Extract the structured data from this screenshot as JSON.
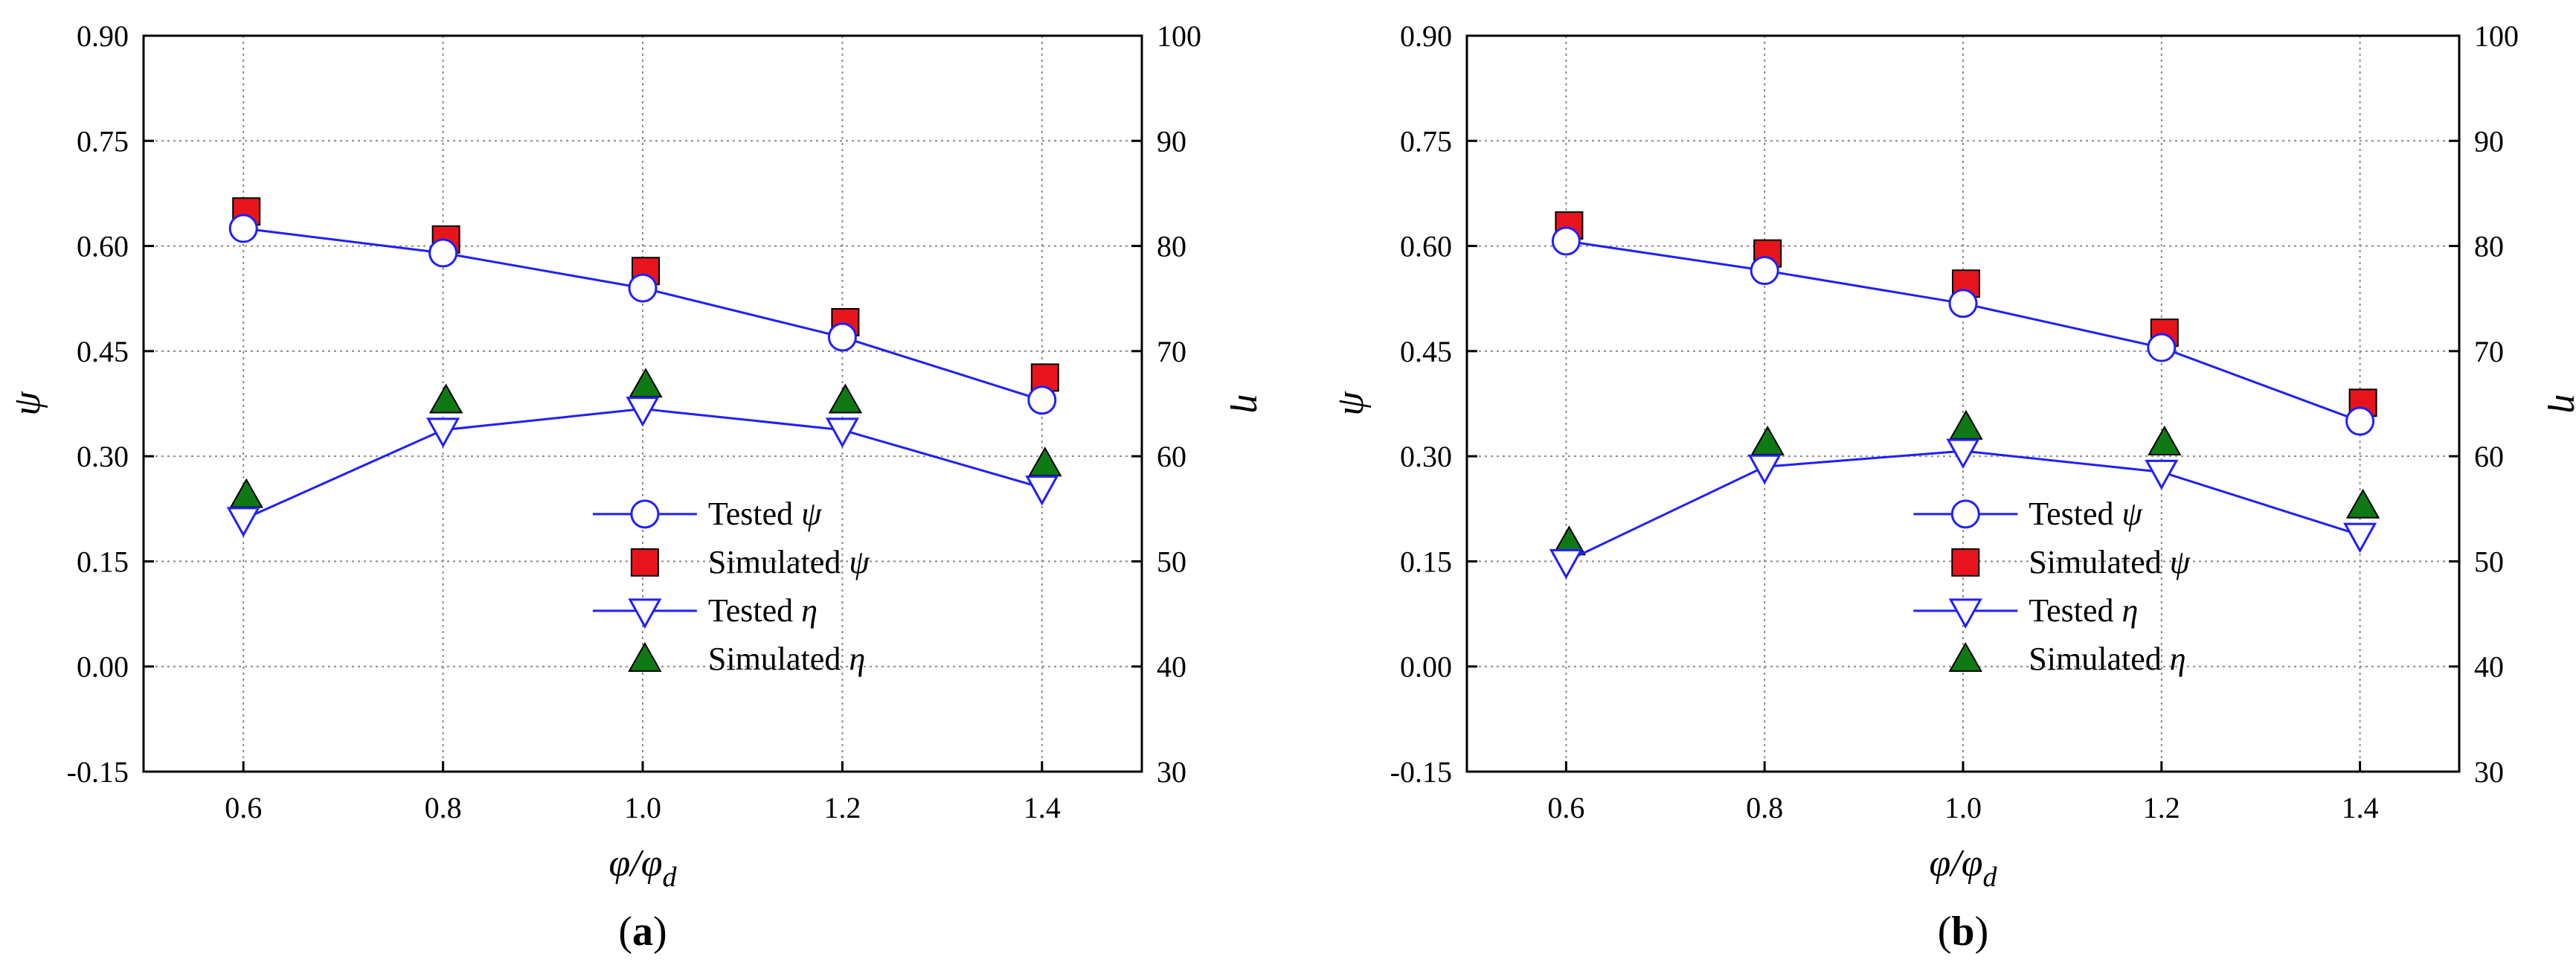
{
  "chart_data": [
    {
      "panel_label": "a",
      "type": "line",
      "x": [
        0.6,
        0.8,
        1.0,
        1.2,
        1.4
      ],
      "xlim": [
        0.5,
        1.5
      ],
      "xticks": [
        "0.6",
        "0.8",
        "1.0",
        "1.2",
        "1.4"
      ],
      "xlabel": {
        "main": "φ/φ",
        "sub": "d"
      },
      "ylabel_left": "ψ",
      "ylabel_right": "η",
      "ylim_left": [
        -0.15,
        0.9
      ],
      "ylim_right": [
        30,
        100
      ],
      "yticks_left": [
        "-0.15",
        "0.00",
        "0.15",
        "0.30",
        "0.45",
        "0.60",
        "0.75",
        "0.90"
      ],
      "yticks_right": [
        "30",
        "40",
        "50",
        "60",
        "70",
        "80",
        "90",
        "100"
      ],
      "grid": true,
      "legend_position": "center-right",
      "series": [
        {
          "name": "Tested ψ",
          "label": "Tested",
          "symbol": "ψ",
          "axis": "left",
          "marker": "circle",
          "line": true,
          "color": "#1f1fff",
          "fill": "#ffffff",
          "values": [
            0.625,
            0.59,
            0.54,
            0.47,
            0.38
          ]
        },
        {
          "name": "Simulated ψ",
          "label": "Simulated",
          "symbol": "ψ",
          "axis": "left",
          "marker": "square",
          "line": false,
          "color": "#000000",
          "fill": "#e8141c",
          "values": [
            0.645,
            0.605,
            0.56,
            0.487,
            0.408
          ]
        },
        {
          "name": "Tested η",
          "label": "Tested",
          "symbol": "η",
          "axis": "right",
          "marker": "triangle-down",
          "line": true,
          "color": "#1f1fff",
          "fill": "#ffffff",
          "values": [
            54.0,
            62.5,
            64.5,
            62.5,
            57.0
          ]
        },
        {
          "name": "Simulated η",
          "label": "Simulated",
          "symbol": "η",
          "axis": "right",
          "marker": "triangle-up",
          "line": false,
          "color": "#000000",
          "fill": "#0f7a14",
          "values": [
            56.0,
            65.0,
            66.5,
            65.0,
            59.0
          ]
        }
      ]
    },
    {
      "panel_label": "b",
      "type": "line",
      "x": [
        0.6,
        0.8,
        1.0,
        1.2,
        1.4
      ],
      "xlim": [
        0.5,
        1.5
      ],
      "xticks": [
        "0.6",
        "0.8",
        "1.0",
        "1.2",
        "1.4"
      ],
      "xlabel": {
        "main": "φ/φ",
        "sub": "d"
      },
      "ylabel_left": "ψ",
      "ylabel_right": "η",
      "ylim_left": [
        -0.15,
        0.9
      ],
      "ylim_right": [
        30,
        100
      ],
      "yticks_left": [
        "-0.15",
        "0.00",
        "0.15",
        "0.30",
        "0.45",
        "0.60",
        "0.75",
        "0.90"
      ],
      "yticks_right": [
        "30",
        "40",
        "50",
        "60",
        "70",
        "80",
        "90",
        "100"
      ],
      "grid": true,
      "legend_position": "center-right",
      "series": [
        {
          "name": "Tested ψ",
          "label": "Tested",
          "symbol": "ψ",
          "axis": "left",
          "marker": "circle",
          "line": true,
          "color": "#1f1fff",
          "fill": "#ffffff",
          "values": [
            0.607,
            0.565,
            0.518,
            0.455,
            0.35
          ]
        },
        {
          "name": "Simulated ψ",
          "label": "Simulated",
          "symbol": "ψ",
          "axis": "left",
          "marker": "square",
          "line": false,
          "color": "#000000",
          "fill": "#e8141c",
          "values": [
            0.625,
            0.585,
            0.542,
            0.472,
            0.372
          ]
        },
        {
          "name": "Tested η",
          "label": "Tested",
          "symbol": "η",
          "axis": "right",
          "marker": "triangle-down",
          "line": true,
          "color": "#1f1fff",
          "fill": "#ffffff",
          "values": [
            50.0,
            59.0,
            60.5,
            58.5,
            52.5
          ]
        },
        {
          "name": "Simulated η",
          "label": "Simulated",
          "symbol": "η",
          "axis": "right",
          "marker": "triangle-up",
          "line": false,
          "color": "#000000",
          "fill": "#0f7a14",
          "values": [
            51.5,
            61.0,
            62.5,
            61.0,
            55.0
          ]
        }
      ]
    }
  ]
}
